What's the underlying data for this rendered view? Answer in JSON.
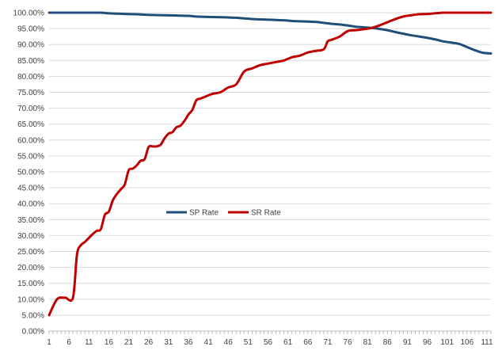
{
  "chart_data": {
    "type": "line",
    "title": "",
    "xlabel": "",
    "ylabel": "",
    "ylim": [
      0,
      100
    ],
    "xlim": [
      1,
      112
    ],
    "grid": true,
    "legend_position": "center-left",
    "y_tick_labels": [
      "0.00%",
      "5.00%",
      "10.00%",
      "15.00%",
      "20.00%",
      "25.00%",
      "30.00%",
      "35.00%",
      "40.00%",
      "45.00%",
      "50.00%",
      "55.00%",
      "60.00%",
      "65.00%",
      "70.00%",
      "75.00%",
      "80.00%",
      "85.00%",
      "90.00%",
      "95.00%",
      "100.00%"
    ],
    "x_tick_labels": [
      "1",
      "6",
      "11",
      "16",
      "21",
      "26",
      "31",
      "36",
      "41",
      "46",
      "51",
      "56",
      "61",
      "66",
      "71",
      "76",
      "81",
      "86",
      "91",
      "96",
      "101",
      "106",
      "111"
    ],
    "series": [
      {
        "name": "SP Rate",
        "color": "#1f4e79",
        "x": [
          1,
          6,
          11,
          14,
          16,
          18,
          20,
          23,
          26,
          30,
          33,
          36,
          38,
          40,
          43,
          46,
          48,
          50,
          52,
          54,
          56,
          58,
          60,
          62,
          64,
          66,
          68,
          70,
          72,
          74,
          76,
          78,
          80,
          82,
          84,
          86,
          88,
          90,
          92,
          94,
          96,
          98,
          100,
          102,
          104,
          106,
          108,
          110,
          112
        ],
        "y": [
          100,
          100,
          100,
          100,
          99.8,
          99.7,
          99.6,
          99.5,
          99.3,
          99.2,
          99.1,
          99.0,
          98.8,
          98.7,
          98.6,
          98.5,
          98.4,
          98.2,
          98.0,
          97.9,
          97.8,
          97.7,
          97.6,
          97.4,
          97.3,
          97.2,
          97.1,
          96.8,
          96.5,
          96.3,
          96.0,
          95.6,
          95.4,
          95.2,
          94.9,
          94.5,
          93.9,
          93.4,
          92.9,
          92.5,
          92.1,
          91.6,
          91.0,
          90.6,
          90.2,
          89.2,
          88.2,
          87.4,
          87.2
        ]
      },
      {
        "name": "SR Rate",
        "color": "#c00000",
        "x": [
          1,
          3,
          5,
          7,
          8,
          9,
          10,
          12,
          13,
          14,
          15,
          16,
          17,
          18,
          19,
          20,
          21,
          22,
          23,
          24,
          25,
          26,
          27,
          28,
          29,
          30,
          31,
          32,
          33,
          34,
          35,
          36,
          37,
          38,
          39,
          40,
          42,
          44,
          46,
          48,
          50,
          52,
          54,
          56,
          58,
          60,
          62,
          64,
          66,
          68,
          70,
          71,
          72,
          74,
          76,
          78,
          80,
          82,
          84,
          86,
          88,
          90,
          92,
          94,
          96,
          98,
          100,
          102,
          104,
          106,
          108,
          110,
          112
        ],
        "y": [
          5,
          10,
          10.5,
          10.5,
          24,
          27,
          28,
          30.5,
          31.5,
          32,
          36.5,
          37.5,
          41,
          43,
          44.5,
          46,
          50.5,
          51,
          52,
          53.5,
          54,
          57.8,
          58,
          58,
          58.5,
          60.5,
          62,
          62.5,
          64,
          64.5,
          66,
          68,
          69.5,
          72.5,
          73,
          73.5,
          74.5,
          75,
          76.5,
          77.5,
          81.5,
          82.5,
          83.5,
          84,
          84.5,
          85,
          86,
          86.5,
          87.5,
          88,
          88.5,
          91,
          91.5,
          92.5,
          94.2,
          94.5,
          94.8,
          95.2,
          96,
          97,
          98,
          98.8,
          99.2,
          99.5,
          99.6,
          99.8,
          100,
          100,
          100,
          100,
          100,
          100,
          100
        ]
      }
    ]
  }
}
